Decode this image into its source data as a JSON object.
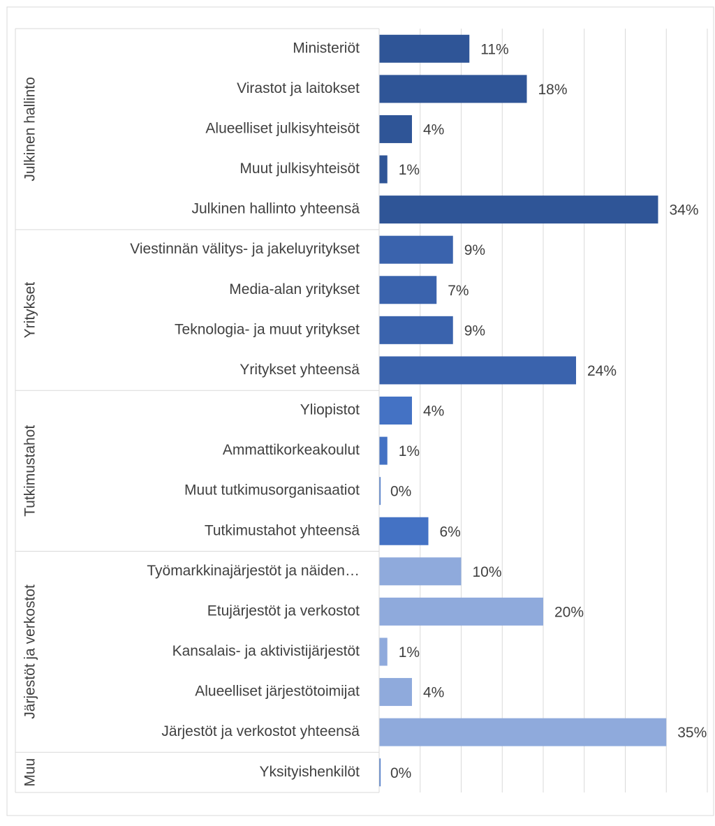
{
  "chart_data": {
    "type": "bar",
    "orientation": "horizontal",
    "groups": [
      {
        "name": "Julkinen hallinto",
        "color": "#2f5597",
        "categories": [
          "Ministeriöt",
          "Virastot ja laitokset",
          "Alueelliset julkisyhteisöt",
          "Muut julkisyhteisöt",
          "Julkinen hallinto yhteensä"
        ],
        "values": [
          11,
          18,
          4,
          1,
          34
        ],
        "value_labels": [
          "11%",
          "18%",
          "4%",
          "1%",
          "34%"
        ]
      },
      {
        "name": "Yritykset",
        "color": "#3a63ad",
        "categories": [
          "Viestinnän välitys- ja jakeluyritykset",
          "Media-alan yritykset",
          "Teknologia- ja muut yritykset",
          "Yritykset yhteensä"
        ],
        "values": [
          9,
          7,
          9,
          24
        ],
        "value_labels": [
          "9%",
          "7%",
          "9%",
          "24%"
        ]
      },
      {
        "name": "Tutkimustahot",
        "color": "#4472c4",
        "categories": [
          "Yliopistot",
          "Ammattikorkeakoulut",
          "Muut tutkimusorganisaatiot",
          "Tutkimustahot yhteensä"
        ],
        "values": [
          4,
          1,
          0,
          6
        ],
        "value_labels": [
          "4%",
          "1%",
          "0%",
          "6%"
        ]
      },
      {
        "name": "Järjestöt ja verkostot",
        "color": "#8faadc",
        "categories": [
          "Työmarkkinajärjestöt ja näiden…",
          "Etujärjestöt ja verkostot",
          "Kansalais- ja aktivistijärjestöt",
          "Alueelliset järjestötoimijat",
          "Järjestöt ja verkostot yhteensä"
        ],
        "values": [
          10,
          20,
          1,
          4,
          35
        ],
        "value_labels": [
          "10%",
          "20%",
          "1%",
          "4%",
          "35%"
        ]
      },
      {
        "name": "Muu",
        "color": "#4472c4",
        "categories": [
          "Yksityishenkilöt"
        ],
        "values": [
          0
        ],
        "value_labels": [
          "0%"
        ]
      }
    ],
    "xlim": [
      0,
      40
    ],
    "xticks": [
      0,
      5,
      10,
      15,
      20,
      25,
      30,
      35,
      40
    ],
    "grid": true
  }
}
